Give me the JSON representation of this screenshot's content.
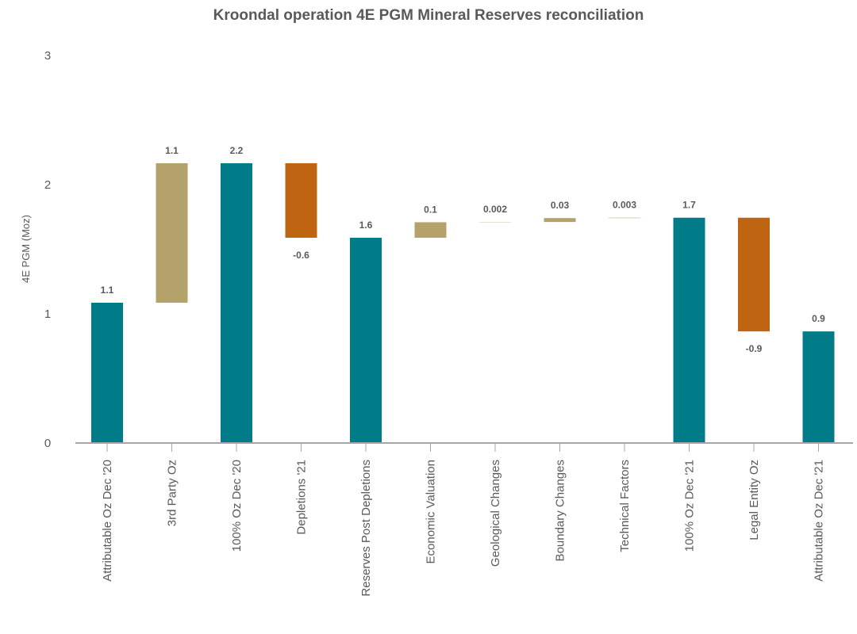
{
  "chart_data": {
    "type": "bar",
    "subtype": "waterfall",
    "title": "Kroondal operation 4E PGM Mineral Reserves reconciliation",
    "xlabel": "",
    "ylabel": "4E PGM (Moz)",
    "ylim": [
      0,
      3
    ],
    "yticks": [
      "0",
      "1",
      "2",
      "3"
    ],
    "grid": false,
    "categories": [
      "Attributable Oz Dec '20",
      "3rd Party Oz",
      "100% Oz Dec '20",
      "Depletions '21",
      "Reserves Post Depletions",
      "Economic Valuation",
      "Geological Changes",
      "Boundary Changes",
      "Technical Factors",
      "100% Oz Dec '21",
      "Legal Entity Oz",
      "Attributable Oz Dec '21"
    ],
    "kinds": [
      "total",
      "increase",
      "total",
      "decrease",
      "total",
      "increase",
      "increase",
      "increase",
      "increase",
      "total",
      "decrease",
      "total"
    ],
    "values": [
      1.086,
      1.08,
      2.166,
      -0.577,
      1.589,
      0.12,
      0.002,
      0.03,
      0.003,
      1.744,
      -0.88,
      0.864
    ],
    "data_labels": [
      "1.1",
      "1.1",
      "2.2",
      "-0.6",
      "1.6",
      "0.1",
      "0.002",
      "0.03",
      "0.003",
      "1.7",
      "-0.9",
      "0.9"
    ],
    "colors": {
      "total": "#007C89",
      "increase": "#B5A26A",
      "decrease": "#BF6511",
      "axis": "#A6A6A6"
    }
  }
}
